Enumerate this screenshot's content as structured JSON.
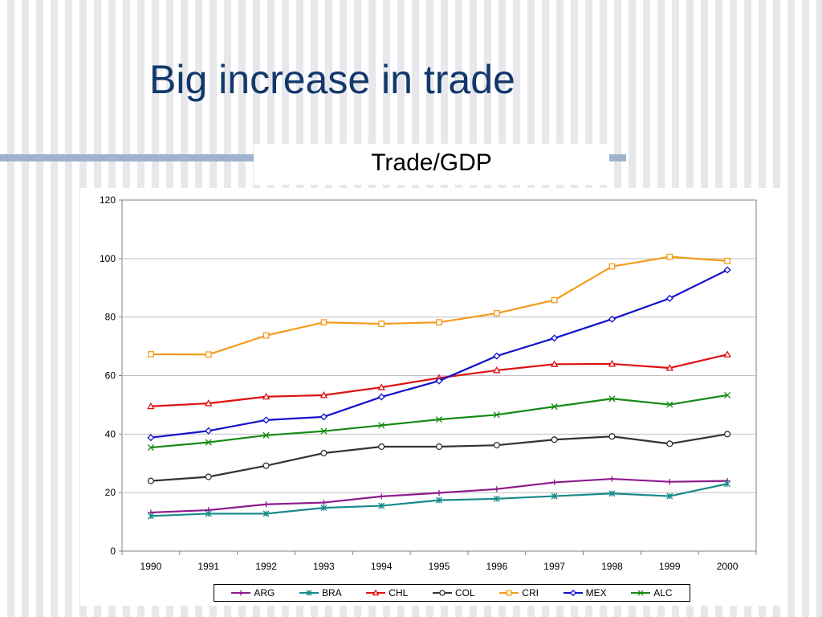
{
  "slide": {
    "title": "Big increase in trade"
  },
  "chart_data": {
    "type": "line",
    "title": "Trade/GDP",
    "xlabel": "",
    "ylabel": "",
    "x": [
      "1990",
      "1991",
      "1992",
      "1993",
      "1994",
      "1995",
      "1996",
      "1997",
      "1998",
      "1999",
      "2000"
    ],
    "ylim": [
      0,
      120
    ],
    "yticks": [
      "0",
      "20",
      "40",
      "60",
      "80",
      "100",
      "120"
    ],
    "grid": true,
    "legend_position": "bottom",
    "series": [
      {
        "name": "ARG",
        "color": "#8e1a8e",
        "marker": "plus",
        "values": [
          13.2,
          14.0,
          16.0,
          16.6,
          18.7,
          19.9,
          21.2,
          23.5,
          24.7,
          23.7,
          24.0
        ]
      },
      {
        "name": "BRA",
        "color": "#188a8a",
        "marker": "star",
        "values": [
          12.0,
          12.8,
          12.8,
          14.8,
          15.5,
          17.4,
          17.9,
          18.8,
          19.7,
          18.8,
          23.0
        ]
      },
      {
        "name": "CHL",
        "color": "#e01010",
        "marker": "triangle",
        "values": [
          49.5,
          50.5,
          52.8,
          53.3,
          56.0,
          59.2,
          61.8,
          63.9,
          64.0,
          62.6,
          67.2
        ]
      },
      {
        "name": "COL",
        "color": "#333333",
        "marker": "circle",
        "values": [
          24.0,
          25.4,
          29.2,
          33.5,
          35.7,
          35.7,
          36.2,
          38.1,
          39.2,
          36.7,
          40.0
        ]
      },
      {
        "name": "CRI",
        "color": "#f59a1a",
        "marker": "square",
        "values": [
          67.3,
          67.2,
          73.7,
          78.2,
          77.7,
          78.2,
          81.3,
          85.8,
          97.3,
          100.6,
          99.2
        ]
      },
      {
        "name": "MEX",
        "color": "#1010cc",
        "marker": "diamond",
        "values": [
          38.8,
          41.1,
          44.8,
          45.9,
          52.7,
          58.2,
          66.7,
          72.8,
          79.3,
          86.4,
          96.1
        ]
      },
      {
        "name": "ALC",
        "color": "#148a14",
        "marker": "x",
        "values": [
          35.4,
          37.2,
          39.6,
          41.0,
          43.0,
          45.0,
          46.6,
          49.4,
          52.1,
          50.1,
          53.3
        ]
      }
    ]
  }
}
